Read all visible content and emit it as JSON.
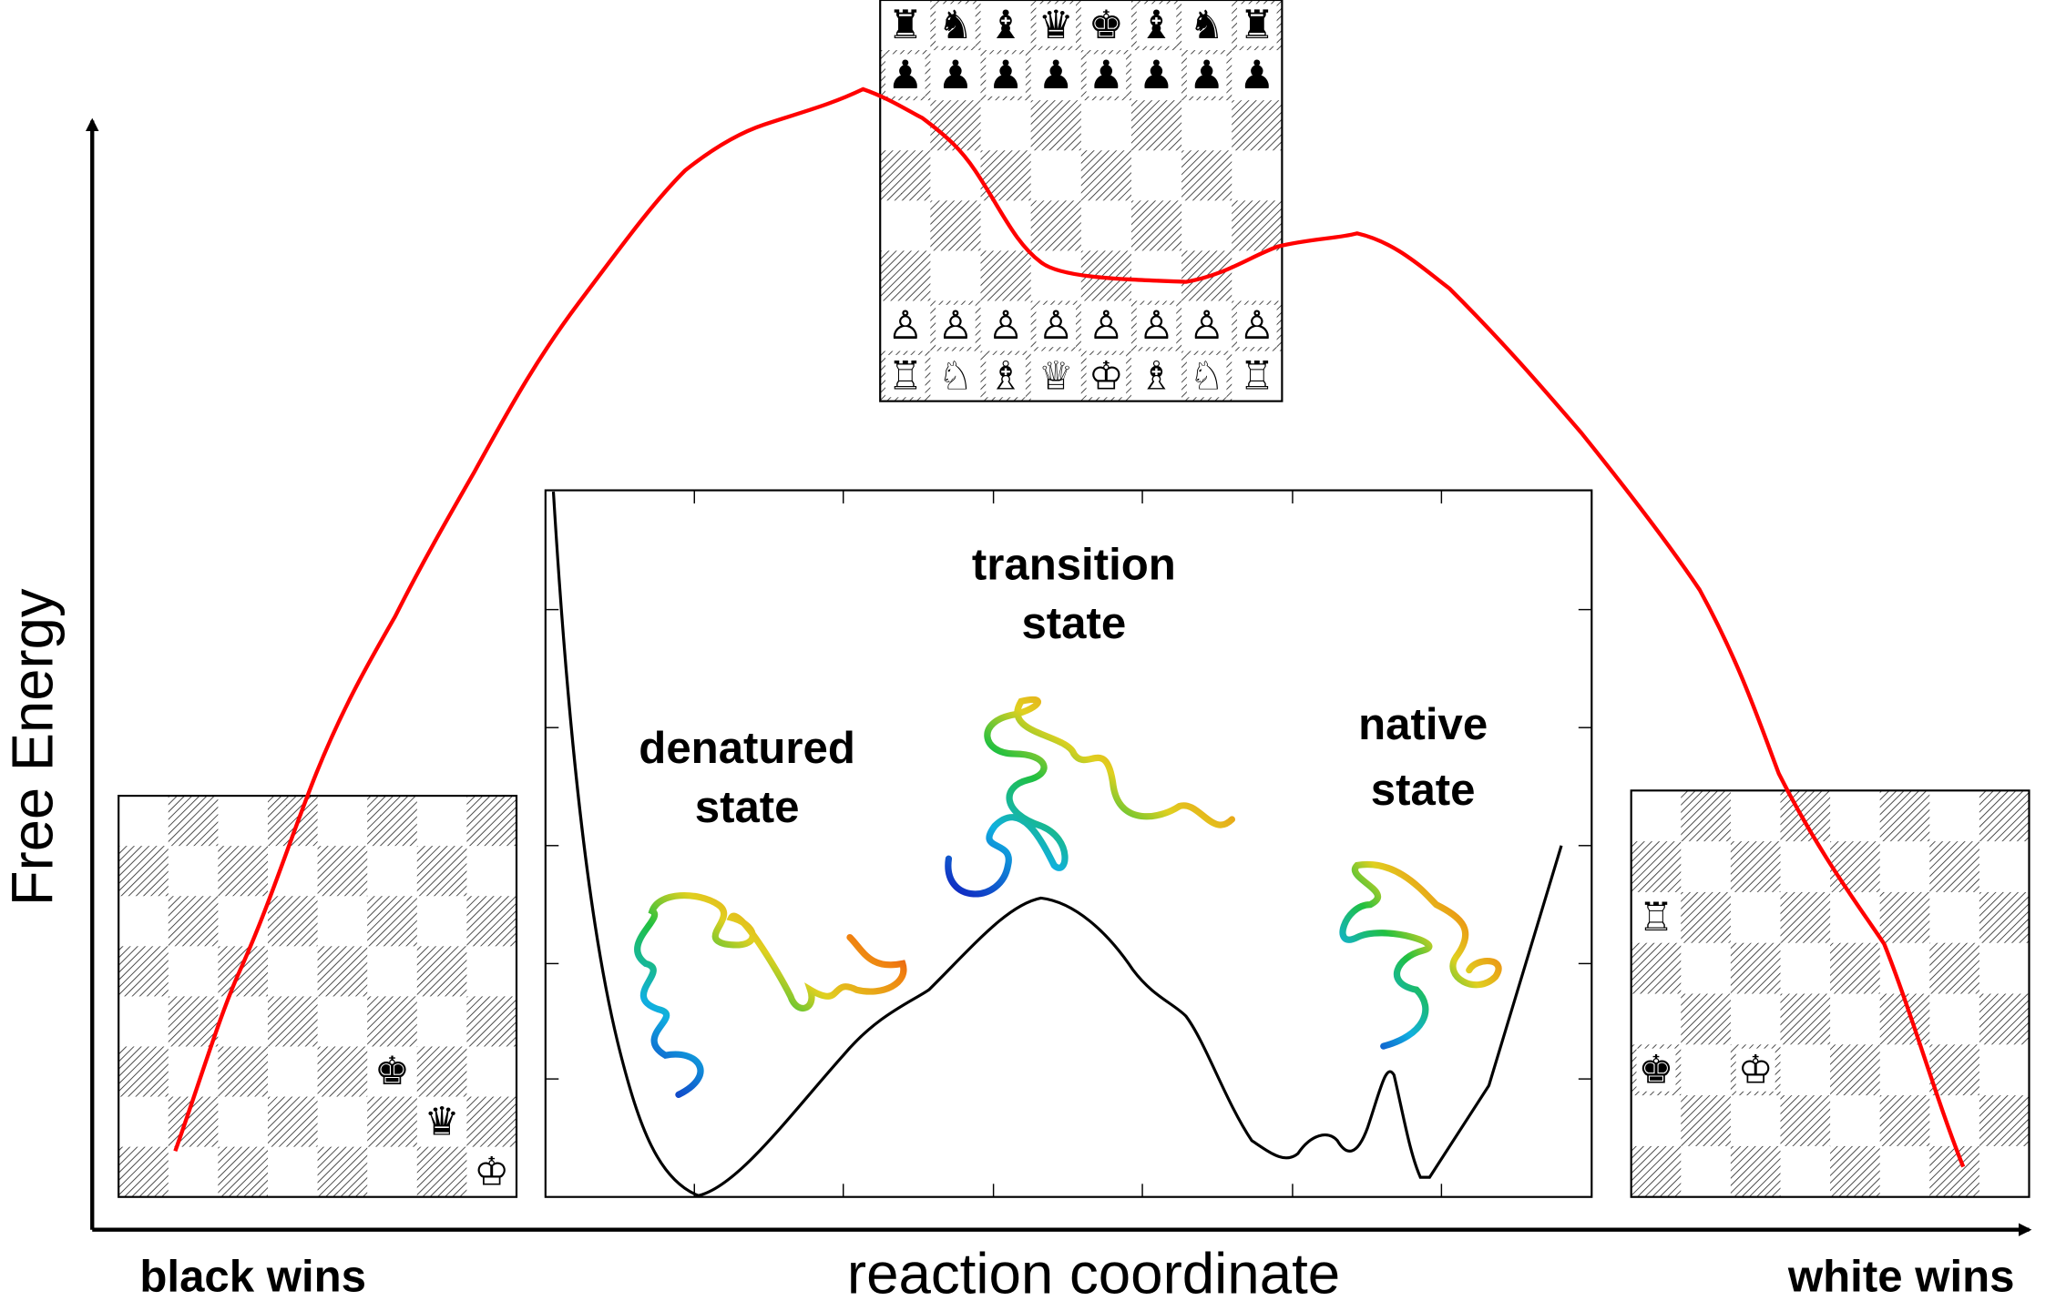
{
  "y_axis_label": "Free Energy",
  "x_axis_label": "reaction coordinate",
  "left_end_label": "black wins",
  "right_end_label": "white wins",
  "states": {
    "denatured": [
      "denatured",
      "state"
    ],
    "transition": [
      "transition",
      "state"
    ],
    "native": [
      "native",
      "state"
    ]
  },
  "boards": {
    "start": {
      "a8": "♜",
      "b8": "♞",
      "c8": "♝",
      "d8": "♛",
      "e8": "♚",
      "f8": "♝",
      "g8": "♞",
      "h8": "♜",
      "a7": "♟",
      "b7": "♟",
      "c7": "♟",
      "d7": "♟",
      "e7": "♟",
      "f7": "♟",
      "g7": "♟",
      "h7": "♟",
      "a2": "♙",
      "b2": "♙",
      "c2": "♙",
      "d2": "♙",
      "e2": "♙",
      "f2": "♙",
      "g2": "♙",
      "h2": "♙",
      "a1": "♖",
      "b1": "♘",
      "c1": "♗",
      "d1": "♕",
      "e1": "♔",
      "f1": "♗",
      "g1": "♘",
      "h1": "♖"
    },
    "black_wins": {
      "f3": "♚",
      "g2": "♛",
      "h1": "♔"
    },
    "white_wins": {
      "a6": "♖",
      "a3": "♚",
      "c3": "♔"
    }
  }
}
